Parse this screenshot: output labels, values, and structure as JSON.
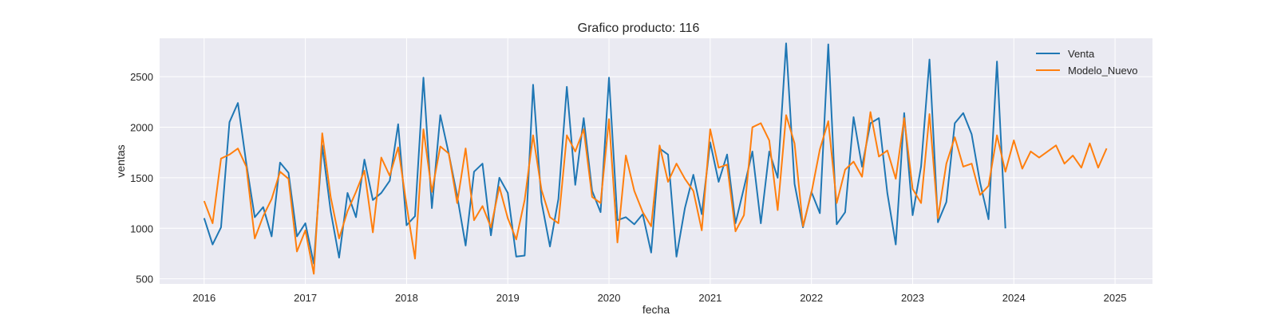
{
  "chart_data": {
    "type": "line",
    "title": "Grafico producto: 116",
    "xlabel": "fecha",
    "ylabel": "ventas",
    "xlim": [
      2015.56,
      2025.37
    ],
    "ylim": [
      450,
      2880
    ],
    "x_ticks": [
      "2016",
      "2017",
      "2018",
      "2019",
      "2020",
      "2021",
      "2022",
      "2023",
      "2024",
      "2025"
    ],
    "y_ticks": [
      "500",
      "1000",
      "1500",
      "2000",
      "2500"
    ],
    "grid": true,
    "legend_position": "top-right",
    "background_color": "#eaeaf2",
    "series": [
      {
        "name": "Venta",
        "color": "#1f77b4",
        "x_start": "2016-01",
        "frequency": "monthly",
        "values": [
          1100,
          840,
          1010,
          2050,
          2240,
          1640,
          1110,
          1210,
          920,
          1650,
          1550,
          920,
          1050,
          650,
          1820,
          1170,
          710,
          1350,
          1110,
          1680,
          1280,
          1350,
          1470,
          2030,
          1030,
          1120,
          2490,
          1200,
          2120,
          1740,
          1320,
          830,
          1560,
          1640,
          930,
          1500,
          1350,
          720,
          730,
          2420,
          1260,
          820,
          1290,
          2400,
          1430,
          2090,
          1370,
          1160,
          2490,
          1080,
          1110,
          1040,
          1140,
          760,
          1790,
          1730,
          720,
          1200,
          1530,
          1140,
          1850,
          1460,
          1730,
          1050,
          1400,
          1760,
          1050,
          1760,
          1500,
          2830,
          1440,
          1010,
          1360,
          1150,
          2820,
          1040,
          1160,
          2100,
          1610,
          2040,
          2090,
          1350,
          840,
          2140,
          1130,
          1610,
          2670,
          1060,
          1260,
          2040,
          2140,
          1930,
          1450,
          1090,
          2650,
          1000
        ]
      },
      {
        "name": "Modelo_Nuevo",
        "color": "#ff7f0e",
        "x_start": "2016-01",
        "frequency": "monthly",
        "values": [
          1270,
          1050,
          1690,
          1730,
          1790,
          1610,
          900,
          1120,
          1290,
          1560,
          1490,
          770,
          980,
          550,
          1940,
          1310,
          900,
          1170,
          1360,
          1570,
          960,
          1700,
          1520,
          1800,
          1230,
          700,
          1980,
          1360,
          1810,
          1740,
          1250,
          1790,
          1080,
          1220,
          1010,
          1410,
          1100,
          890,
          1280,
          1920,
          1380,
          1110,
          1050,
          1920,
          1760,
          1980,
          1310,
          1250,
          2080,
          860,
          1720,
          1370,
          1160,
          1020,
          1820,
          1460,
          1640,
          1490,
          1370,
          980,
          1980,
          1600,
          1630,
          970,
          1130,
          2000,
          2040,
          1870,
          1180,
          2120,
          1840,
          1020,
          1350,
          1780,
          2060,
          1250,
          1580,
          1660,
          1510,
          2150,
          1710,
          1770,
          1490,
          2090,
          1390,
          1250,
          2130,
          1100,
          1640,
          1900,
          1610,
          1640,
          1330,
          1420,
          1920,
          1560,
          1870,
          1590,
          1760,
          1700,
          1760,
          1820,
          1640,
          1720,
          1600,
          1840,
          1600,
          1790
        ]
      }
    ]
  }
}
